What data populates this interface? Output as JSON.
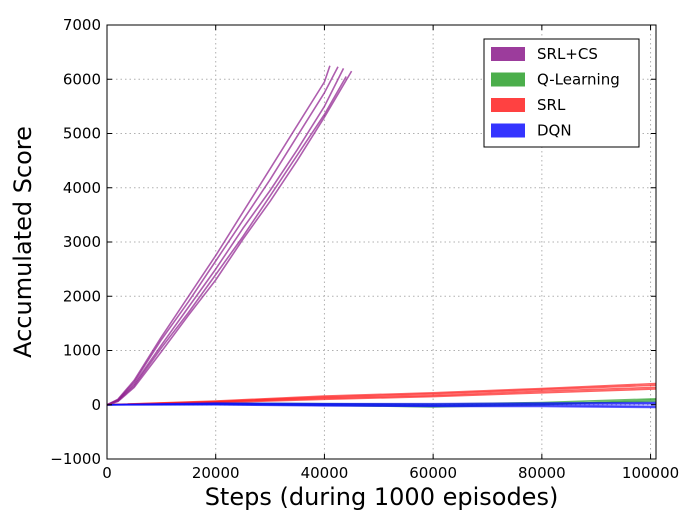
{
  "chart_data": {
    "type": "line",
    "title": "",
    "xlabel": "Steps (during 1000 episodes)",
    "ylabel": "Accumulated Score",
    "xlim": [
      0,
      101000
    ],
    "ylim": [
      -1000,
      7000
    ],
    "xticks": [
      0,
      20000,
      40000,
      60000,
      80000,
      100000
    ],
    "yticks": [
      -1000,
      0,
      1000,
      2000,
      3000,
      4000,
      5000,
      6000,
      7000
    ],
    "xtick_labels": [
      "0",
      "20000",
      "40000",
      "60000",
      "80000",
      "100000"
    ],
    "ytick_labels": [
      "−1000",
      "0",
      "1000",
      "2000",
      "3000",
      "4000",
      "5000",
      "6000",
      "7000"
    ],
    "grid": true,
    "legend_position": "top-right",
    "series": [
      {
        "name": "SRL+CS",
        "color": "#8b1a8b",
        "runs": [
          {
            "x": [
              0,
              2000,
              5000,
              10000,
              15000,
              20000,
              25000,
              30000,
              35000,
              40000,
              43500
            ],
            "y": [
              0,
              80,
              380,
              1100,
              1800,
              2500,
              3250,
              3950,
              4700,
              5500,
              6200
            ]
          },
          {
            "x": [
              0,
              2000,
              5000,
              10000,
              15000,
              20000,
              25000,
              30000,
              35000,
              40000,
              45000
            ],
            "y": [
              0,
              60,
              320,
              980,
              1650,
              2300,
              3050,
              3750,
              4500,
              5300,
              6150
            ]
          },
          {
            "x": [
              0,
              2000,
              5000,
              10000,
              15000,
              20000,
              25000,
              30000,
              35000,
              40000,
              42500
            ],
            "y": [
              0,
              90,
              420,
              1200,
              1900,
              2650,
              3400,
              4150,
              4950,
              5750,
              6230
            ]
          },
          {
            "x": [
              0,
              2000,
              5000,
              10000,
              15000,
              20000,
              25000,
              30000,
              35000,
              40000,
              41000
            ],
            "y": [
              0,
              100,
              450,
              1250,
              2000,
              2750,
              3550,
              4350,
              5150,
              5950,
              6250
            ]
          },
          {
            "x": [
              0,
              2000,
              5000,
              10000,
              15000,
              20000,
              25000,
              30000,
              35000,
              40000,
              44000
            ],
            "y": [
              0,
              70,
              350,
              1050,
              1700,
              2400,
              3100,
              3850,
              4600,
              5350,
              6050
            ]
          }
        ]
      },
      {
        "name": "Q-Learning",
        "color": "#2ca02c",
        "runs": [
          {
            "x": [
              0,
              20000,
              40000,
              60000,
              80000,
              101000
            ],
            "y": [
              0,
              20,
              10,
              -20,
              20,
              60
            ]
          },
          {
            "x": [
              0,
              20000,
              40000,
              60000,
              80000,
              101000
            ],
            "y": [
              0,
              10,
              -10,
              -40,
              0,
              90
            ]
          },
          {
            "x": [
              0,
              20000,
              40000,
              60000,
              80000,
              101000
            ],
            "y": [
              0,
              30,
              20,
              10,
              40,
              110
            ]
          }
        ]
      },
      {
        "name": "SRL",
        "color": "#ff2020",
        "runs": [
          {
            "x": [
              0,
              20000,
              40000,
              60000,
              80000,
              101000
            ],
            "y": [
              0,
              60,
              140,
              200,
              280,
              360
            ]
          },
          {
            "x": [
              0,
              20000,
              40000,
              60000,
              80000,
              101000
            ],
            "y": [
              0,
              50,
              120,
              170,
              250,
              320
            ]
          },
          {
            "x": [
              0,
              20000,
              40000,
              60000,
              80000,
              101000
            ],
            "y": [
              0,
              40,
              100,
              150,
              220,
              290
            ]
          },
          {
            "x": [
              0,
              20000,
              40000,
              60000,
              80000,
              101000
            ],
            "y": [
              0,
              70,
              160,
              220,
              300,
              390
            ]
          }
        ]
      },
      {
        "name": "DQN",
        "color": "#1010ff",
        "runs": [
          {
            "x": [
              0,
              20000,
              40000,
              60000,
              80000,
              101000
            ],
            "y": [
              0,
              20,
              10,
              0,
              10,
              20
            ]
          },
          {
            "x": [
              0,
              20000,
              40000,
              60000,
              80000,
              101000
            ],
            "y": [
              0,
              10,
              -10,
              -20,
              -10,
              -30
            ]
          },
          {
            "x": [
              0,
              20000,
              40000,
              60000,
              80000,
              101000
            ],
            "y": [
              0,
              30,
              20,
              20,
              30,
              40
            ]
          },
          {
            "x": [
              0,
              20000,
              40000,
              60000,
              80000,
              101000
            ],
            "y": [
              0,
              0,
              -20,
              -30,
              -30,
              -50
            ]
          }
        ]
      }
    ]
  }
}
